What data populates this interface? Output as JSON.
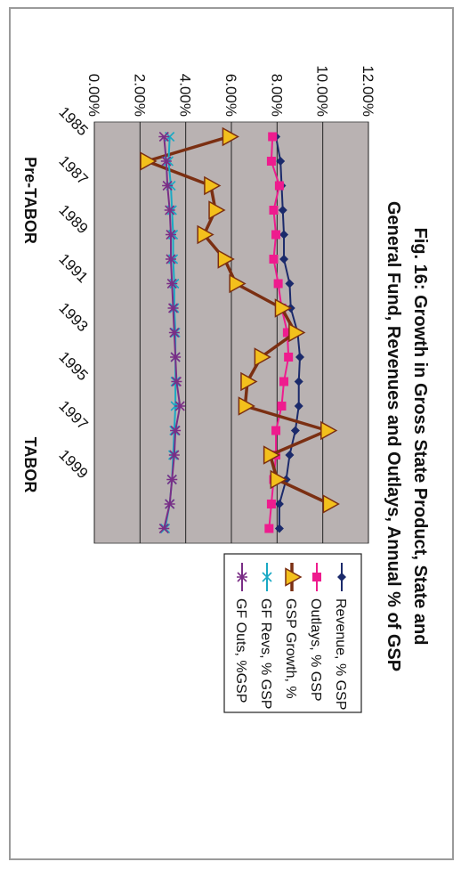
{
  "chart_data": {
    "type": "line",
    "title_lines": [
      "Fig. 16: Growth in Gross State Product, State and",
      "General Fund, Revenues and Outlays, Annual % of GSP"
    ],
    "x": [
      1985,
      1986,
      1987,
      1988,
      1989,
      1990,
      1991,
      1992,
      1993,
      1994,
      1995,
      1996,
      1997,
      1998,
      1999,
      2000,
      2001
    ],
    "x_tick_labels": [
      "1985",
      "1987",
      "1989",
      "1991",
      "1993",
      "1995",
      "1997",
      "1999"
    ],
    "x_ticks": [
      1985,
      1987,
      1989,
      1991,
      1993,
      1995,
      1997,
      1999
    ],
    "era_labels": [
      "Pre-TABOR",
      "TABOR"
    ],
    "ylim": [
      0,
      12
    ],
    "y_ticks": [
      0,
      2,
      4,
      6,
      8,
      10,
      12
    ],
    "y_tick_labels": [
      "0.00%",
      "2.00%",
      "4.00%",
      "6.00%",
      "8.00%",
      "10.00%",
      "12.00%"
    ],
    "grid": true,
    "legend_position": "right",
    "colors": {
      "plot_bg": "#b9b2b2",
      "gridline": "#222222",
      "frame": "#9a9a9a"
    },
    "series": [
      {
        "name": "Revenue, % GSP",
        "color": "#1b2a6b",
        "marker": "diamond",
        "values": [
          7.95,
          8.15,
          8.2,
          8.25,
          8.3,
          8.3,
          8.55,
          8.6,
          8.9,
          9.0,
          8.95,
          8.95,
          8.8,
          8.55,
          8.4,
          8.1,
          8.1
        ]
      },
      {
        "name": "Outlays, % GSP",
        "color": "#ee1c8e",
        "marker": "square",
        "values": [
          7.8,
          7.75,
          8.1,
          7.85,
          7.95,
          7.85,
          8.05,
          8.2,
          8.45,
          8.5,
          8.3,
          8.2,
          7.95,
          7.95,
          7.85,
          7.75,
          7.65
        ]
      },
      {
        "name": "GSP Growth, %",
        "color": "#7b2f12",
        "marker_fill": "#f3c01c",
        "marker": "triangle",
        "values": [
          5.9,
          2.3,
          5.1,
          5.3,
          4.8,
          5.7,
          6.2,
          8.2,
          8.8,
          7.3,
          6.7,
          6.6,
          10.2,
          7.7,
          8.0,
          10.3,
          null
        ]
      },
      {
        "name": "GF Revs, % GSP",
        "color": "#1aa9c4",
        "marker": "x",
        "values": [
          3.3,
          3.25,
          3.35,
          3.4,
          3.45,
          3.45,
          3.5,
          3.5,
          3.55,
          3.55,
          3.55,
          3.55,
          3.5,
          3.45,
          3.4,
          3.3,
          3.1
        ]
      },
      {
        "name": "GF Outs, %GSP",
        "color": "#7a2e86",
        "marker": "star",
        "values": [
          3.05,
          3.15,
          3.2,
          3.3,
          3.35,
          3.35,
          3.4,
          3.45,
          3.5,
          3.55,
          3.6,
          3.75,
          3.55,
          3.5,
          3.4,
          3.3,
          3.05
        ]
      }
    ]
  }
}
